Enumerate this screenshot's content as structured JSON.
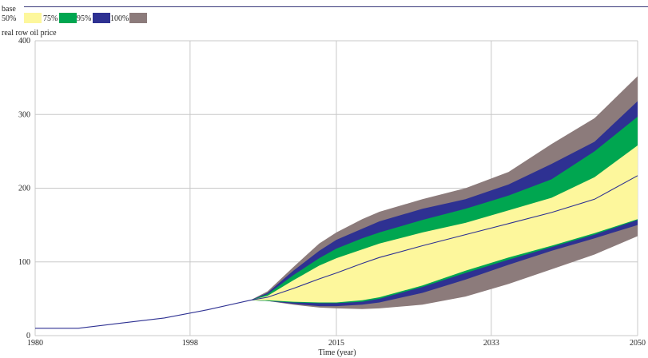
{
  "chart_data": {
    "type": "area",
    "title": "real row oil price",
    "run_label": "base",
    "legend": {
      "placement": "top-left",
      "entries": [
        {
          "label": "50%",
          "color": "#fdf79c"
        },
        {
          "label": "75%",
          "color": "#00a650"
        },
        {
          "label": "95%",
          "color": "#2e3192"
        },
        {
          "label": "100%",
          "color": "#8c7b7b"
        }
      ]
    },
    "xlabel": "Time (year)",
    "ylabel": "",
    "xlim": [
      1980,
      2050
    ],
    "ylim": [
      0,
      400
    ],
    "x_ticks": [
      "1980",
      "1998",
      "2015",
      "2033",
      "2050"
    ],
    "y_ticks": [
      "0",
      "100",
      "200",
      "300",
      "400"
    ],
    "grid": true,
    "line_color": "#2e3192",
    "x": [
      1980,
      1985,
      1990,
      1995,
      2000,
      2005,
      2007,
      2010,
      2013,
      2015,
      2018,
      2020,
      2025,
      2030,
      2035,
      2040,
      2045,
      2050
    ],
    "series": [
      {
        "name": "100%",
        "lower": [
          10,
          10,
          17,
          24,
          35,
          48,
          47,
          42,
          38,
          37,
          36,
          37,
          42,
          53,
          70,
          90,
          110,
          135
        ],
        "upper": [
          10,
          10,
          17,
          24,
          35,
          48,
          60,
          93,
          125,
          140,
          158,
          168,
          185,
          200,
          222,
          260,
          295,
          352
        ]
      },
      {
        "name": "95%",
        "lower": [
          10,
          10,
          17,
          24,
          35,
          48,
          47,
          43,
          40,
          40,
          42,
          45,
          58,
          76,
          96,
          115,
          132,
          150
        ],
        "upper": [
          10,
          10,
          17,
          24,
          35,
          48,
          58,
          88,
          115,
          130,
          145,
          155,
          172,
          185,
          205,
          233,
          263,
          318
        ]
      },
      {
        "name": "75%",
        "lower": [
          10,
          10,
          17,
          24,
          35,
          48,
          47,
          45,
          44,
          44,
          46,
          50,
          66,
          85,
          103,
          120,
          137,
          157
        ],
        "upper": [
          10,
          10,
          17,
          24,
          35,
          48,
          56,
          82,
          105,
          118,
          132,
          140,
          157,
          172,
          190,
          212,
          250,
          297
        ]
      },
      {
        "name": "50%",
        "lower": [
          10,
          10,
          17,
          24,
          35,
          48,
          48,
          46,
          45,
          45,
          48,
          52,
          68,
          88,
          106,
          122,
          139,
          158
        ],
        "upper": [
          10,
          10,
          17,
          24,
          35,
          48,
          54,
          75,
          95,
          105,
          117,
          125,
          140,
          153,
          170,
          187,
          215,
          258
        ]
      },
      {
        "name": "base",
        "values": [
          10,
          10,
          17,
          24,
          35,
          48,
          52,
          64,
          77,
          85,
          98,
          106,
          122,
          137,
          152,
          167,
          185,
          217
        ]
      }
    ]
  }
}
